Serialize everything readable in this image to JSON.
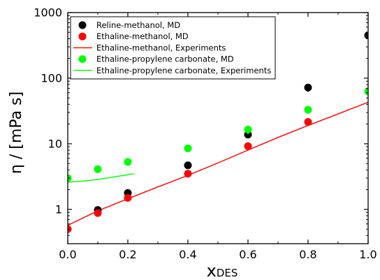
{
  "chart_data": {
    "type": "scatter",
    "xlabel": {
      "main": "x",
      "sub": "DES"
    },
    "ylabel": "η / [mPa s]",
    "xlim": [
      0.0,
      1.0
    ],
    "ylim": [
      0.3,
      1000
    ],
    "yscale": "log",
    "x_ticks": [
      "0.0",
      "0.2",
      "0.4",
      "0.6",
      "0.8",
      "1.0"
    ],
    "y_ticks": [
      "1",
      "10",
      "100",
      "1000"
    ],
    "legend_position": "top-left",
    "series": [
      {
        "name": "Reline-methanol, MD",
        "kind": "points",
        "color": "#000000",
        "points": [
          [
            0.1,
            0.98
          ],
          [
            0.2,
            1.78
          ],
          [
            0.4,
            4.7
          ],
          [
            0.6,
            13.8
          ],
          [
            0.8,
            72
          ],
          [
            1.0,
            450
          ]
        ],
        "errors": [
          0,
          0,
          0,
          1.5,
          10,
          0
        ]
      },
      {
        "name": "Ethaline-methanol, MD",
        "kind": "points",
        "color": "#ff0000",
        "points": [
          [
            0.0,
            0.5
          ],
          [
            0.1,
            0.88
          ],
          [
            0.2,
            1.5
          ],
          [
            0.4,
            3.5
          ],
          [
            0.6,
            9.2
          ],
          [
            0.8,
            21.5
          ]
        ],
        "errors": [
          0,
          0,
          0,
          0,
          0,
          0
        ]
      },
      {
        "name": "Ethaline-methanol, Experiments",
        "kind": "line",
        "color": "#ff0000",
        "points": [
          [
            0.0,
            0.57
          ],
          [
            0.05,
            0.74
          ],
          [
            0.1,
            0.95
          ],
          [
            0.2,
            1.45
          ],
          [
            0.3,
            2.2
          ],
          [
            0.4,
            3.3
          ],
          [
            0.5,
            5.1
          ],
          [
            0.6,
            8.0
          ],
          [
            0.7,
            12.5
          ],
          [
            0.8,
            19.0
          ],
          [
            0.9,
            28.5
          ],
          [
            1.0,
            43.0
          ]
        ]
      },
      {
        "name": "Ethaline-propylene carbonate, MD",
        "kind": "points",
        "color": "#00ff00",
        "points": [
          [
            0.0,
            3.0
          ],
          [
            0.1,
            4.1
          ],
          [
            0.2,
            5.3
          ],
          [
            0.4,
            8.5
          ],
          [
            0.6,
            16.5
          ],
          [
            0.8,
            33
          ],
          [
            1.0,
            63
          ]
        ],
        "errors": [
          0,
          0,
          0,
          0,
          2.5,
          0,
          0
        ]
      },
      {
        "name": "Ethaline-propylene carbonate, Experiments",
        "kind": "line",
        "color": "#00ff00",
        "points": [
          [
            0.0,
            2.6
          ],
          [
            0.05,
            2.7
          ],
          [
            0.1,
            2.85
          ],
          [
            0.15,
            3.1
          ],
          [
            0.22,
            3.5
          ]
        ]
      }
    ]
  }
}
